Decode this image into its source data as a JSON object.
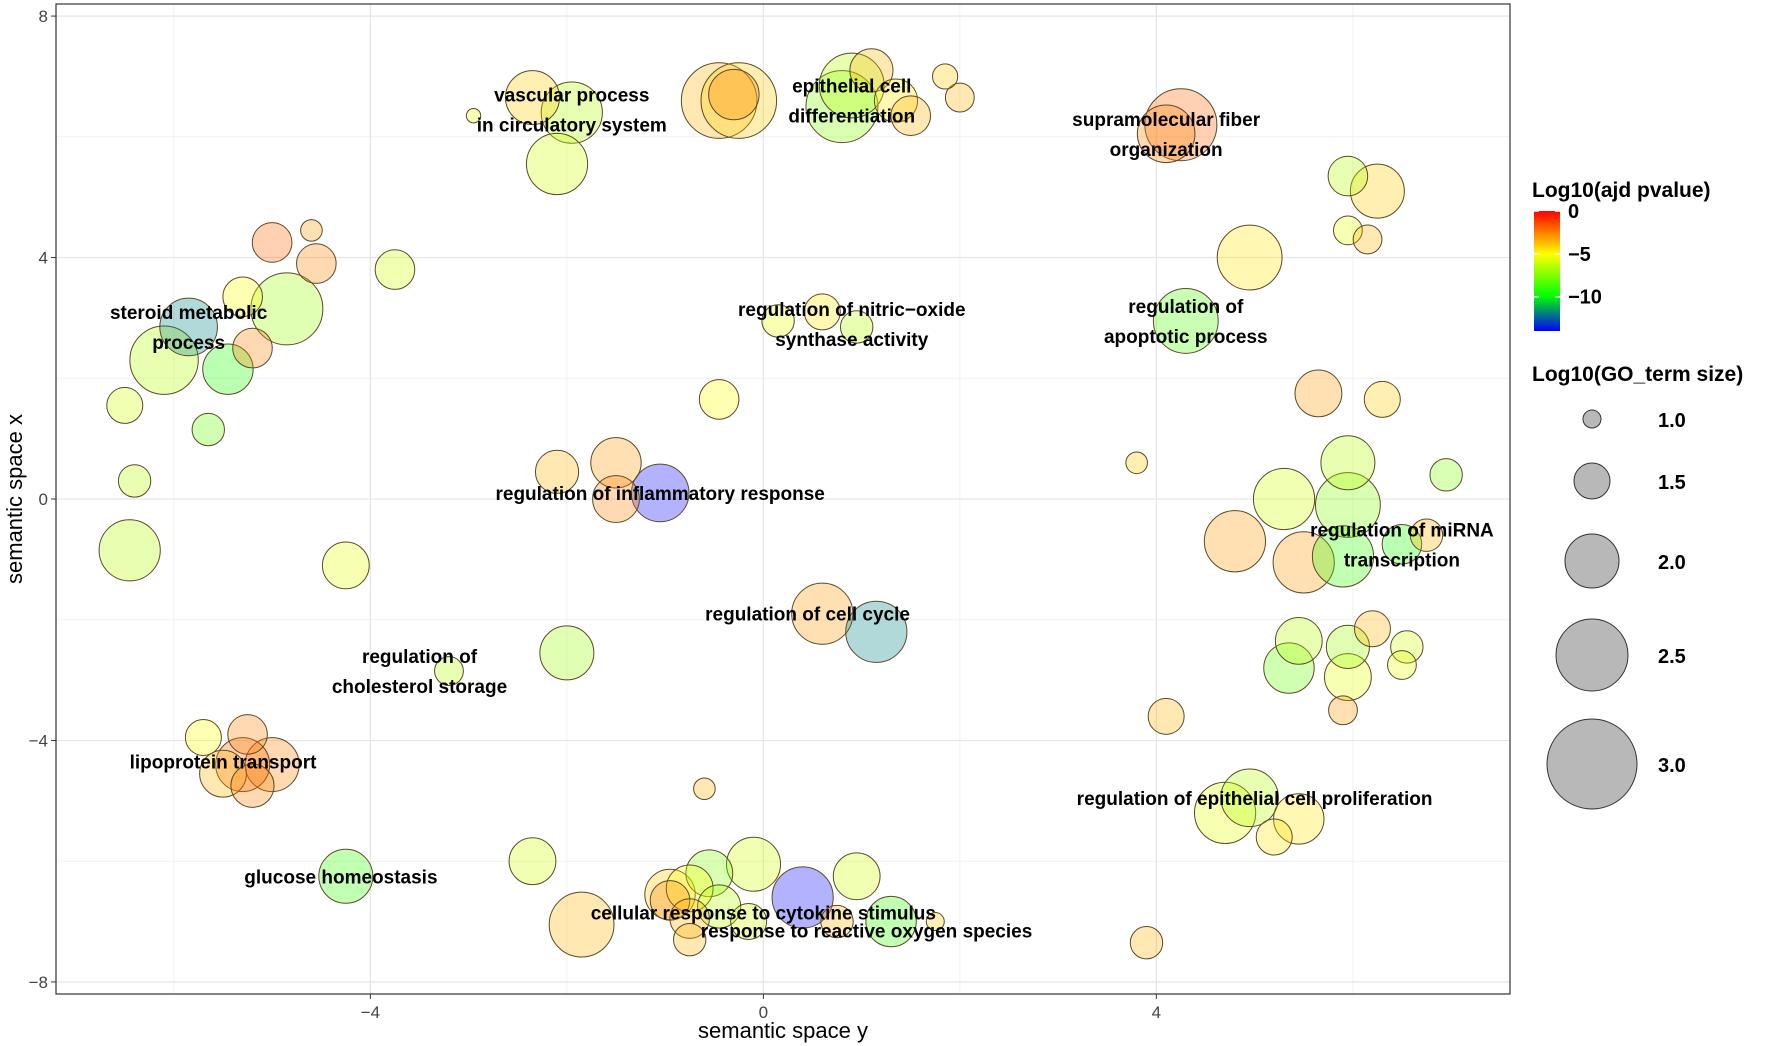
{
  "chart_data": {
    "type": "scatter",
    "xlabel": "semantic space y",
    "ylabel": "semantic space x",
    "xlim": [
      -7.2,
      7.6
    ],
    "ylim": [
      -8.2,
      8.2
    ],
    "x_ticks": [
      -4,
      0,
      4
    ],
    "x_tick_labels": [
      "−4",
      "0",
      "4"
    ],
    "y_ticks": [
      -8,
      -4,
      0,
      4,
      8
    ],
    "y_tick_labels": [
      "−8",
      "−4",
      "0",
      "4",
      "8"
    ],
    "grid": true,
    "color_legend": {
      "title": "Log10(ajd pvalue)",
      "ticks": [
        0,
        -5,
        -10
      ],
      "tick_labels": [
        "0",
        "−5",
        "−10"
      ],
      "range": [
        -14,
        0
      ],
      "colors": [
        "#ff0000",
        "#ffff00",
        "#00ff00",
        "#0000ff"
      ]
    },
    "size_legend": {
      "title": "Log10(GO_term size)",
      "values": [
        1.0,
        1.5,
        2.0,
        2.5,
        3.0
      ],
      "labels": [
        "1.0",
        "1.5",
        "2.0",
        "2.5",
        "3.0"
      ]
    },
    "legend_position": "right",
    "labels": [
      {
        "lines": [
          "vascular process",
          "in circulatory system"
        ],
        "x": -1.95,
        "y": 6.45
      },
      {
        "lines": [
          "epithelial cell",
          "differentiation"
        ],
        "x": 0.9,
        "y": 6.6
      },
      {
        "lines": [
          "supramolecular fiber",
          "organization"
        ],
        "x": 4.1,
        "y": 6.05
      },
      {
        "lines": [
          "steroid metabolic",
          "process"
        ],
        "x": -5.85,
        "y": 2.85
      },
      {
        "lines": [
          "regulation of nitric−oxide",
          "synthase activity"
        ],
        "x": 0.9,
        "y": 2.9
      },
      {
        "lines": [
          "regulation of",
          "apoptotic process"
        ],
        "x": 4.3,
        "y": 2.95
      },
      {
        "lines": [
          "regulation of inflammatory response"
        ],
        "x": -1.05,
        "y": 0.1
      },
      {
        "lines": [
          "regulation of miRNA",
          "transcription"
        ],
        "x": 6.5,
        "y": -0.75
      },
      {
        "lines": [
          "regulation of cell cycle"
        ],
        "x": 0.45,
        "y": -1.9
      },
      {
        "lines": [
          "regulation of",
          "cholesterol storage"
        ],
        "x": -3.5,
        "y": -2.85
      },
      {
        "lines": [
          "lipoprotein transport"
        ],
        "x": -5.5,
        "y": -4.35
      },
      {
        "lines": [
          "regulation of epithelial cell proliferation"
        ],
        "x": 5.0,
        "y": -4.95
      },
      {
        "lines": [
          "glucose homeostasis"
        ],
        "x": -4.3,
        "y": -6.25
      },
      {
        "lines": [
          "cellular response to cytokine stimulus"
        ],
        "x": 0.0,
        "y": -6.85
      },
      {
        "lines": [
          "response to reactive oxygen species"
        ],
        "x": 1.05,
        "y": -7.15
      }
    ],
    "points": [
      {
        "x": -2.35,
        "y": 6.65,
        "size": 2.0,
        "pvalue": -4.0
      },
      {
        "x": -1.95,
        "y": 6.4,
        "size": 2.2,
        "pvalue": -6.5
      },
      {
        "x": -2.1,
        "y": 5.55,
        "size": 2.2,
        "pvalue": -6.0
      },
      {
        "x": -2.95,
        "y": 6.35,
        "size": 0.9,
        "pvalue": -5.5
      },
      {
        "x": -0.45,
        "y": 6.6,
        "size": 2.6,
        "pvalue": -3.5
      },
      {
        "x": -0.25,
        "y": 6.6,
        "size": 2.6,
        "pvalue": -4.0
      },
      {
        "x": -0.3,
        "y": 6.7,
        "size": 1.9,
        "pvalue": -2.5
      },
      {
        "x": 0.8,
        "y": 6.5,
        "size": 2.5,
        "pvalue": -7.5
      },
      {
        "x": 0.9,
        "y": 6.85,
        "size": 2.3,
        "pvalue": -6.5
      },
      {
        "x": 1.1,
        "y": 7.1,
        "size": 1.7,
        "pvalue": -3.5
      },
      {
        "x": 1.35,
        "y": 6.6,
        "size": 1.7,
        "pvalue": -4.5
      },
      {
        "x": 1.5,
        "y": 6.35,
        "size": 1.6,
        "pvalue": -3.5
      },
      {
        "x": 1.85,
        "y": 7.0,
        "size": 1.2,
        "pvalue": -4.0
      },
      {
        "x": 2.0,
        "y": 6.65,
        "size": 1.3,
        "pvalue": -3.5
      },
      {
        "x": 4.25,
        "y": 6.2,
        "size": 2.5,
        "pvalue": -2.0
      },
      {
        "x": 4.1,
        "y": 6.05,
        "size": 2.1,
        "pvalue": -2.5
      },
      {
        "x": 5.95,
        "y": 5.35,
        "size": 1.6,
        "pvalue": -6.5
      },
      {
        "x": 6.25,
        "y": 5.1,
        "size": 2.0,
        "pvalue": -4.0
      },
      {
        "x": 5.95,
        "y": 4.45,
        "size": 1.3,
        "pvalue": -5.5
      },
      {
        "x": 6.15,
        "y": 4.3,
        "size": 1.3,
        "pvalue": -3.5
      },
      {
        "x": 4.95,
        "y": 4.0,
        "size": 2.3,
        "pvalue": -4.5
      },
      {
        "x": -5.0,
        "y": 4.25,
        "size": 1.6,
        "pvalue": -2.0
      },
      {
        "x": -4.55,
        "y": 3.9,
        "size": 1.6,
        "pvalue": -2.5
      },
      {
        "x": -4.6,
        "y": 4.45,
        "size": 1.1,
        "pvalue": -3.0
      },
      {
        "x": -3.75,
        "y": 3.8,
        "size": 1.6,
        "pvalue": -6.0
      },
      {
        "x": -5.3,
        "y": 3.35,
        "size": 1.6,
        "pvalue": -5.0
      },
      {
        "x": -4.85,
        "y": 3.15,
        "size": 2.5,
        "pvalue": -7.0
      },
      {
        "x": -5.85,
        "y": 2.85,
        "size": 2.1,
        "pvalue": -12.0
      },
      {
        "x": -5.2,
        "y": 2.5,
        "size": 1.6,
        "pvalue": -2.5
      },
      {
        "x": -6.1,
        "y": 2.3,
        "size": 2.4,
        "pvalue": -6.5
      },
      {
        "x": -5.45,
        "y": 2.15,
        "size": 1.9,
        "pvalue": -9.5
      },
      {
        "x": -6.5,
        "y": 1.55,
        "size": 1.5,
        "pvalue": -6.0
      },
      {
        "x": -5.65,
        "y": 1.15,
        "size": 1.4,
        "pvalue": -8.0
      },
      {
        "x": -6.4,
        "y": 0.3,
        "size": 1.4,
        "pvalue": -6.5
      },
      {
        "x": -6.45,
        "y": -0.85,
        "size": 2.2,
        "pvalue": -6.5
      },
      {
        "x": -4.25,
        "y": -1.1,
        "size": 1.8,
        "pvalue": -5.5
      },
      {
        "x": 0.15,
        "y": 2.95,
        "size": 1.4,
        "pvalue": -5.5
      },
      {
        "x": 0.6,
        "y": 3.1,
        "size": 1.5,
        "pvalue": -4.5
      },
      {
        "x": 0.95,
        "y": 2.85,
        "size": 1.4,
        "pvalue": -6.5
      },
      {
        "x": 4.3,
        "y": 2.95,
        "size": 2.3,
        "pvalue": -8.5
      },
      {
        "x": -0.45,
        "y": 1.65,
        "size": 1.6,
        "pvalue": -5.0
      },
      {
        "x": -2.1,
        "y": 0.45,
        "size": 1.7,
        "pvalue": -3.5
      },
      {
        "x": -1.5,
        "y": 0.6,
        "size": 1.9,
        "pvalue": -3.0
      },
      {
        "x": -1.5,
        "y": 0.0,
        "size": 1.8,
        "pvalue": -2.5
      },
      {
        "x": -1.05,
        "y": 0.1,
        "size": 2.1,
        "pvalue": -14.0
      },
      {
        "x": 3.8,
        "y": 0.6,
        "size": 1.1,
        "pvalue": -4.0
      },
      {
        "x": 5.65,
        "y": 1.75,
        "size": 1.8,
        "pvalue": -3.0
      },
      {
        "x": 6.3,
        "y": 1.65,
        "size": 1.5,
        "pvalue": -4.0
      },
      {
        "x": 5.95,
        "y": 0.6,
        "size": 2.0,
        "pvalue": -6.5
      },
      {
        "x": 6.95,
        "y": 0.4,
        "size": 1.4,
        "pvalue": -7.5
      },
      {
        "x": 5.3,
        "y": 0.0,
        "size": 2.2,
        "pvalue": -6.0
      },
      {
        "x": 5.95,
        "y": -0.1,
        "size": 2.3,
        "pvalue": -7.5
      },
      {
        "x": 4.8,
        "y": -0.7,
        "size": 2.2,
        "pvalue": -3.0
      },
      {
        "x": 5.5,
        "y": -1.05,
        "size": 2.2,
        "pvalue": -3.0
      },
      {
        "x": 5.9,
        "y": -0.95,
        "size": 2.2,
        "pvalue": -9.0
      },
      {
        "x": 6.5,
        "y": -0.75,
        "size": 1.6,
        "pvalue": -9.5
      },
      {
        "x": 6.75,
        "y": -0.6,
        "size": 1.4,
        "pvalue": -3.5
      },
      {
        "x": 0.6,
        "y": -1.9,
        "size": 2.2,
        "pvalue": -3.0
      },
      {
        "x": 1.15,
        "y": -2.2,
        "size": 2.2,
        "pvalue": -12.0
      },
      {
        "x": -2.0,
        "y": -2.55,
        "size": 2.0,
        "pvalue": -7.0
      },
      {
        "x": -3.2,
        "y": -2.85,
        "size": 1.3,
        "pvalue": -6.5
      },
      {
        "x": 5.45,
        "y": -2.35,
        "size": 1.8,
        "pvalue": -6.5
      },
      {
        "x": 5.95,
        "y": -2.45,
        "size": 1.7,
        "pvalue": -7.0
      },
      {
        "x": 6.2,
        "y": -2.15,
        "size": 1.5,
        "pvalue": -3.5
      },
      {
        "x": 6.55,
        "y": -2.45,
        "size": 1.4,
        "pvalue": -6.0
      },
      {
        "x": 6.5,
        "y": -2.75,
        "size": 1.3,
        "pvalue": -5.5
      },
      {
        "x": 5.35,
        "y": -2.8,
        "size": 1.9,
        "pvalue": -8.0
      },
      {
        "x": 5.95,
        "y": -2.95,
        "size": 1.8,
        "pvalue": -5.5
      },
      {
        "x": 5.9,
        "y": -3.5,
        "size": 1.3,
        "pvalue": -3.0
      },
      {
        "x": 4.1,
        "y": -3.6,
        "size": 1.5,
        "pvalue": -3.5
      },
      {
        "x": -5.7,
        "y": -3.95,
        "size": 1.5,
        "pvalue": -5.0
      },
      {
        "x": -5.25,
        "y": -3.9,
        "size": 1.6,
        "pvalue": -2.5
      },
      {
        "x": -5.0,
        "y": -4.4,
        "size": 2.0,
        "pvalue": -2.5
      },
      {
        "x": -5.3,
        "y": -4.4,
        "size": 2.0,
        "pvalue": -2.0
      },
      {
        "x": -5.5,
        "y": -4.55,
        "size": 1.8,
        "pvalue": -3.5
      },
      {
        "x": -5.2,
        "y": -4.75,
        "size": 1.7,
        "pvalue": -2.5
      },
      {
        "x": -0.6,
        "y": -4.8,
        "size": 1.1,
        "pvalue": -3.5
      },
      {
        "x": 4.95,
        "y": -4.95,
        "size": 2.1,
        "pvalue": -6.5
      },
      {
        "x": 4.7,
        "y": -5.2,
        "size": 2.2,
        "pvalue": -5.5
      },
      {
        "x": 5.45,
        "y": -5.3,
        "size": 1.9,
        "pvalue": -4.5
      },
      {
        "x": 5.2,
        "y": -5.6,
        "size": 1.5,
        "pvalue": -4.5
      },
      {
        "x": -4.25,
        "y": -6.25,
        "size": 2.0,
        "pvalue": -9.0
      },
      {
        "x": -2.35,
        "y": -6.0,
        "size": 1.8,
        "pvalue": -6.0
      },
      {
        "x": -0.95,
        "y": -6.55,
        "size": 1.9,
        "pvalue": -4.0
      },
      {
        "x": -0.55,
        "y": -6.2,
        "size": 1.8,
        "pvalue": -7.5
      },
      {
        "x": -0.1,
        "y": -6.05,
        "size": 2.0,
        "pvalue": -6.0
      },
      {
        "x": -0.75,
        "y": -6.45,
        "size": 1.8,
        "pvalue": -5.0
      },
      {
        "x": -0.95,
        "y": -6.65,
        "size": 1.6,
        "pvalue": -2.5
      },
      {
        "x": -0.75,
        "y": -6.95,
        "size": 1.6,
        "pvalue": -3.5
      },
      {
        "x": -0.45,
        "y": -6.75,
        "size": 1.7,
        "pvalue": -6.5
      },
      {
        "x": -0.15,
        "y": -7.0,
        "size": 1.5,
        "pvalue": -6.0
      },
      {
        "x": 0.4,
        "y": -6.6,
        "size": 2.2,
        "pvalue": -14.0
      },
      {
        "x": 0.95,
        "y": -6.25,
        "size": 1.8,
        "pvalue": -6.0
      },
      {
        "x": 1.3,
        "y": -7.0,
        "size": 1.9,
        "pvalue": -9.0
      },
      {
        "x": 0.75,
        "y": -7.0,
        "size": 1.4,
        "pvalue": -3.5
      },
      {
        "x": 1.75,
        "y": -7.0,
        "size": 1.0,
        "pvalue": -4.0
      },
      {
        "x": -1.85,
        "y": -7.05,
        "size": 2.3,
        "pvalue": -3.5
      },
      {
        "x": -0.75,
        "y": -7.3,
        "size": 1.4,
        "pvalue": -3.5
      },
      {
        "x": 3.9,
        "y": -7.35,
        "size": 1.4,
        "pvalue": -3.5
      }
    ]
  }
}
